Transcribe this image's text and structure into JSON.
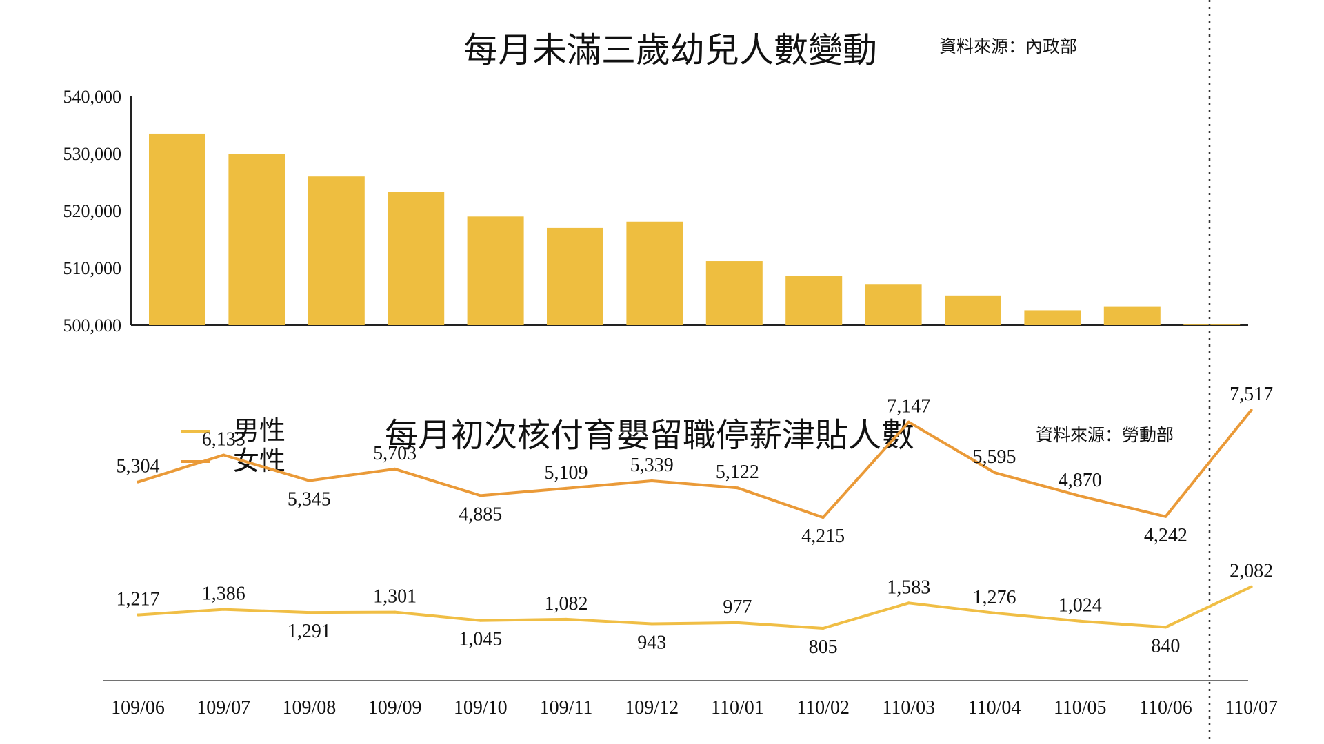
{
  "charts": {
    "infants": {
      "title": "每月未滿三歲幼兒人數變動",
      "source": "資料來源：內政部",
      "bar_color": "#EEBE40"
    },
    "leave": {
      "title": "每月初次核付育嬰留職停薪津貼人數",
      "source": "資料來源：勞動部",
      "legend_male": "男性",
      "legend_female": "女性",
      "male_color": "#F0BE45",
      "female_color": "#EA9A38"
    }
  },
  "chart_data": [
    {
      "type": "bar",
      "title": "每月未滿三歲幼兒人數變動",
      "categories": [
        "109/06",
        "109/07",
        "109/08",
        "109/09",
        "109/10",
        "109/11",
        "109/12",
        "110/01",
        "110/02",
        "110/03",
        "110/04",
        "110/05",
        "110/06",
        "110/07"
      ],
      "values": [
        533500,
        530000,
        526000,
        523300,
        519000,
        517000,
        518100,
        511200,
        508600,
        507200,
        505200,
        502600,
        503300,
        500100
      ],
      "ylim": [
        500000,
        540000
      ],
      "yticks": [
        "500,000",
        "510,000",
        "520,000",
        "530,000",
        "540,000"
      ],
      "grid": false
    },
    {
      "type": "line",
      "title": "每月初次核付育嬰留職停薪津貼人數",
      "categories": [
        "109/06",
        "109/07",
        "109/08",
        "109/09",
        "109/10",
        "109/11",
        "109/12",
        "110/01",
        "110/02",
        "110/03",
        "110/04",
        "110/05",
        "110/06",
        "110/07"
      ],
      "legend_position": "top-left",
      "series": [
        {
          "name": "女性",
          "values": [
            5304,
            6133,
            5345,
            5703,
            4885,
            5109,
            5339,
            5122,
            4215,
            7147,
            5595,
            4870,
            4242,
            7517
          ],
          "labels": [
            "5,304",
            "6,133",
            "5,345",
            "5,703",
            "4,885",
            "5,109",
            "5,339",
            "5,122",
            "4,215",
            "7,147",
            "5,595",
            "4,870",
            "4,242",
            "7,517"
          ]
        },
        {
          "name": "男性",
          "values": [
            1217,
            1386,
            1291,
            1301,
            1045,
            1082,
            943,
            977,
            805,
            1583,
            1276,
            1024,
            840,
            2082
          ],
          "labels": [
            "1,217",
            "1,386",
            "1,291",
            "1,301",
            "1,045",
            "1,082",
            "943",
            "977",
            "805",
            "1,583",
            "1,276",
            "1,024",
            "840",
            "2,082"
          ]
        }
      ]
    }
  ]
}
